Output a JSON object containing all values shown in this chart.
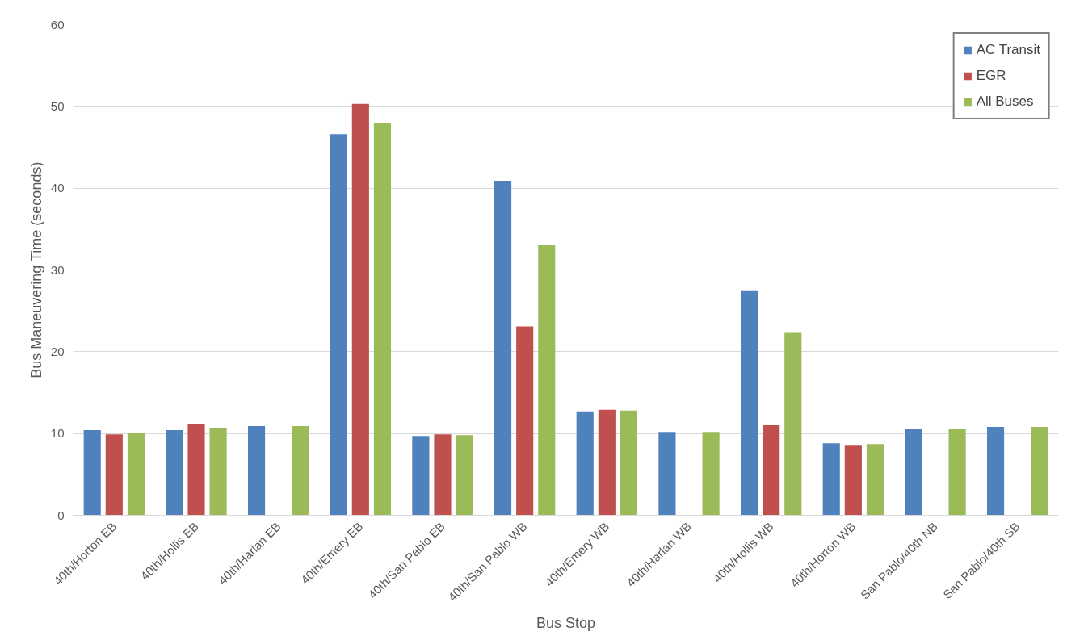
{
  "chart_data": {
    "type": "bar",
    "xlabel": "Bus Stop",
    "ylabel": "Bus Maneuvering Time (seconds)",
    "categories": [
      "40th/Horton EB",
      "40th/Hollis EB",
      "40th/Harlan EB",
      "40th/Emery EB",
      "40th/San Pablo EB",
      "40th/San Pablo WB",
      "40th/Emery WB",
      "40th/Harlan WB",
      "40th/Hollis WB",
      "40th/Horton WB",
      "San Pablo/40th NB",
      "San Pablo/40th SB"
    ],
    "series": [
      {
        "name": "AC Transit",
        "color": "#4f81bd",
        "values": [
          10.4,
          10.4,
          10.9,
          46.6,
          9.7,
          40.9,
          12.7,
          10.2,
          27.5,
          8.8,
          10.5,
          10.8
        ]
      },
      {
        "name": "EGR",
        "color": "#c0504d",
        "values": [
          9.9,
          11.2,
          null,
          50.3,
          9.9,
          23.1,
          12.9,
          null,
          11.0,
          8.5,
          null,
          null
        ]
      },
      {
        "name": "All Buses",
        "color": "#9bbb59",
        "values": [
          10.1,
          10.7,
          10.9,
          47.9,
          9.8,
          33.1,
          12.8,
          10.2,
          22.4,
          8.7,
          10.5,
          10.8
        ]
      }
    ],
    "ylim": [
      0,
      60
    ],
    "yticks": [
      0,
      10,
      20,
      30,
      40,
      50,
      60
    ],
    "grid": "y",
    "legend": "top right"
  }
}
